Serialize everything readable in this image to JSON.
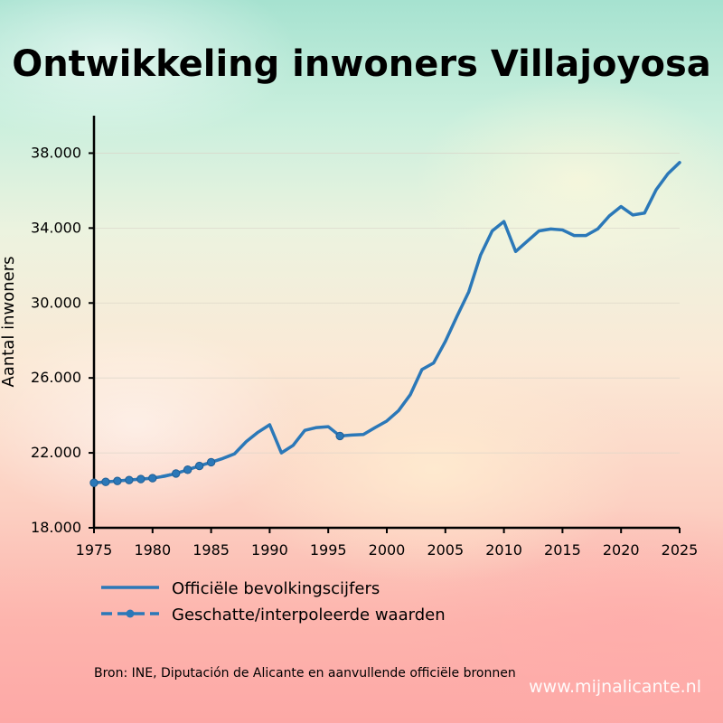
{
  "chart_data": {
    "type": "line",
    "title": "Ontwikkeling inwoners Villajoyosa",
    "xlabel": "",
    "ylabel": "Aantal inwoners",
    "xlim": [
      1975,
      2025
    ],
    "ylim": [
      18000,
      40000
    ],
    "x_ticks": [
      1975,
      1980,
      1985,
      1990,
      1995,
      2000,
      2005,
      2010,
      2015,
      2020,
      2025
    ],
    "x_tick_labels": [
      "1975",
      "1980",
      "1985",
      "1990",
      "1995",
      "2000",
      "2005",
      "2010",
      "2015",
      "2020",
      "2025"
    ],
    "y_ticks": [
      18000,
      22000,
      26000,
      30000,
      34000,
      38000
    ],
    "y_tick_labels": [
      "18.000",
      "22.000",
      "26.000",
      "30.000",
      "34.000",
      "38.000"
    ],
    "grid": "horizontal",
    "legend_position": "below",
    "series": [
      {
        "name": "Officiële bevolkingscijfers",
        "style": "solid",
        "color": "#2b78b8",
        "x": [
          1975,
          1976,
          1977,
          1978,
          1979,
          1980,
          1981,
          1982,
          1983,
          1984,
          1985,
          1986,
          1987,
          1988,
          1989,
          1990,
          1991,
          1992,
          1993,
          1994,
          1995,
          1996,
          1997,
          1998,
          1999,
          2000,
          2001,
          2002,
          2003,
          2004,
          2005,
          2006,
          2007,
          2008,
          2009,
          2010,
          2011,
          2012,
          2013,
          2014,
          2015,
          2016,
          2017,
          2018,
          2019,
          2020,
          2021,
          2022,
          2023,
          2024,
          2025
        ],
        "y": [
          20400,
          20450,
          20500,
          20550,
          20600,
          20650,
          20750,
          20900,
          21100,
          21300,
          21500,
          21700,
          21950,
          22600,
          23100,
          23500,
          22000,
          22400,
          23200,
          23350,
          23400,
          22900,
          22950,
          22980,
          23350,
          23700,
          24250,
          25100,
          26450,
          26800,
          27950,
          29300,
          30600,
          32550,
          33850,
          34350,
          32750,
          33300,
          33850,
          33950,
          33900,
          33600,
          33600,
          33950,
          34650,
          35150,
          34700,
          34800,
          36050,
          36900,
          37500
        ]
      },
      {
        "name": "Geschatte/interpolerede waarden",
        "style": "dashed-markers",
        "color": "#2b78b8",
        "x": [
          1975,
          1976,
          1977,
          1978,
          1979,
          1980,
          1982,
          1983,
          1984,
          1985,
          1996
        ],
        "y": [
          20400,
          20450,
          20500,
          20550,
          20600,
          20650,
          20900,
          21100,
          21300,
          21500,
          22900
        ]
      }
    ],
    "legend": [
      {
        "label": "Officiële bevolkingscijfers",
        "style": "solid"
      },
      {
        "label": "Geschatte/interpoleerde waarden",
        "style": "dashed-markers"
      }
    ]
  },
  "source_note": "Bron: INE, Diputación de Alicante en aanvullende officiële bronnen",
  "watermark": "www.mijnalicante.nl",
  "colors": {
    "line": "#2b78b8",
    "axis": "#000000",
    "grid": "#d9d4c8"
  }
}
